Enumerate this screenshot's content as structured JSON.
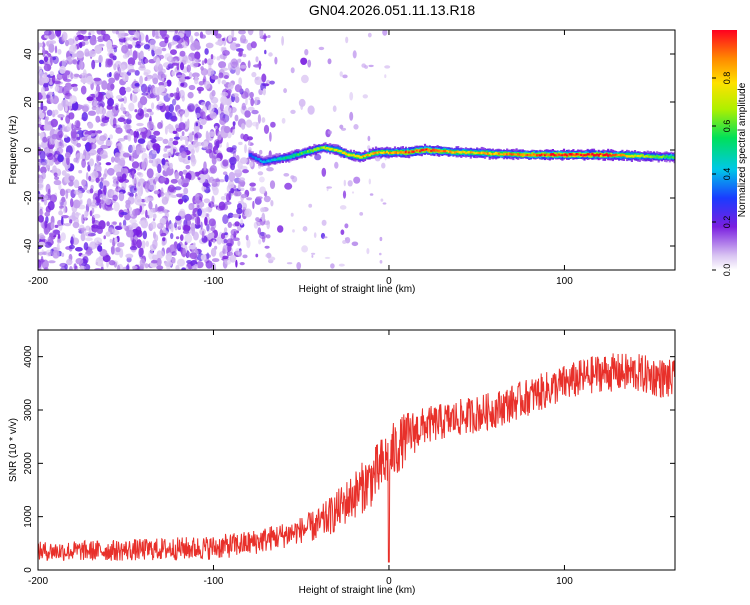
{
  "title": "GN04.2026.051.11.13.R18",
  "colors": {
    "snr_line": "#e8302a",
    "axis": "#000000"
  },
  "chart_data": [
    {
      "type": "heatmap",
      "name": "spectrogram",
      "xlabel": "Height of straight line (km)",
      "ylabel": "Frequency (Hz)",
      "xlim": [
        -200,
        163
      ],
      "ylim": [
        -50,
        50
      ],
      "xticks": [
        -200,
        -100,
        0,
        100
      ],
      "xtick_labels": [
        "-200",
        "-100",
        "0",
        "100"
      ],
      "yticks": [
        -40,
        -20,
        0,
        20,
        40
      ],
      "ytick_labels": [
        "-40",
        "-20",
        "0",
        "20",
        "40"
      ],
      "noise_region_x": [
        -200,
        -60
      ],
      "signal_start_x": -80,
      "ridge": [
        {
          "x": -80,
          "f": -2
        },
        {
          "x": -72,
          "f": -5
        },
        {
          "x": -66,
          "f": -4
        },
        {
          "x": -58,
          "f": -3
        },
        {
          "x": -48,
          "f": -1
        },
        {
          "x": -38,
          "f": 1
        },
        {
          "x": -30,
          "f": 0
        },
        {
          "x": -24,
          "f": -2
        },
        {
          "x": -16,
          "f": -3
        },
        {
          "x": -8,
          "f": -1
        },
        {
          "x": 0,
          "f": -1
        },
        {
          "x": 10,
          "f": -1
        },
        {
          "x": 20,
          "f": 0
        },
        {
          "x": 40,
          "f": -1
        },
        {
          "x": 80,
          "f": -2
        },
        {
          "x": 120,
          "f": -2
        },
        {
          "x": 163,
          "f": -3
        }
      ],
      "amplitude_profile": [
        {
          "x": -80,
          "a": 0.25
        },
        {
          "x": -60,
          "a": 0.45
        },
        {
          "x": -40,
          "a": 0.6
        },
        {
          "x": -20,
          "a": 0.75
        },
        {
          "x": 0,
          "a": 0.8
        },
        {
          "x": 20,
          "a": 0.92
        },
        {
          "x": 40,
          "a": 0.75
        },
        {
          "x": 60,
          "a": 0.8
        },
        {
          "x": 80,
          "a": 0.88
        },
        {
          "x": 100,
          "a": 0.97
        },
        {
          "x": 120,
          "a": 0.97
        },
        {
          "x": 140,
          "a": 0.7
        },
        {
          "x": 163,
          "a": 0.5
        }
      ],
      "colorbar": {
        "label": "Normalized spectral amplitude",
        "range": [
          0,
          1
        ],
        "ticks": [
          0.0,
          0.2,
          0.4,
          0.6,
          0.8
        ],
        "tick_labels": [
          "0.0",
          "0.2",
          "0.4",
          "0.6",
          "0.8"
        ]
      }
    },
    {
      "type": "line",
      "name": "snr",
      "xlabel": "Height of straight line (km)",
      "ylabel": "SNR (10 * v/v)",
      "xlim": [
        -200,
        163
      ],
      "ylim": [
        0,
        4500
      ],
      "xticks": [
        -200,
        -100,
        0,
        100
      ],
      "xtick_labels": [
        "-200",
        "-100",
        "0",
        "100"
      ],
      "yticks": [
        0,
        1000,
        2000,
        3000,
        4000
      ],
      "ytick_labels": [
        "0",
        "1000",
        "2000",
        "3000",
        "4000"
      ],
      "trend": [
        {
          "x": -200,
          "y": 350
        },
        {
          "x": -150,
          "y": 370
        },
        {
          "x": -100,
          "y": 420
        },
        {
          "x": -80,
          "y": 500
        },
        {
          "x": -60,
          "y": 650
        },
        {
          "x": -40,
          "y": 850
        },
        {
          "x": -30,
          "y": 1100
        },
        {
          "x": -20,
          "y": 1400
        },
        {
          "x": -10,
          "y": 1700
        },
        {
          "x": 0,
          "y": 2100
        },
        {
          "x": 10,
          "y": 2500
        },
        {
          "x": 20,
          "y": 2700
        },
        {
          "x": 40,
          "y": 2850
        },
        {
          "x": 60,
          "y": 3000
        },
        {
          "x": 80,
          "y": 3250
        },
        {
          "x": 100,
          "y": 3500
        },
        {
          "x": 120,
          "y": 3700
        },
        {
          "x": 140,
          "y": 3700
        },
        {
          "x": 163,
          "y": 3550
        }
      ],
      "noise_amplitude": [
        {
          "x": -200,
          "a": 180
        },
        {
          "x": -50,
          "a": 250
        },
        {
          "x": -20,
          "a": 450
        },
        {
          "x": 0,
          "a": 600
        },
        {
          "x": 20,
          "a": 350
        },
        {
          "x": 100,
          "a": 350
        },
        {
          "x": 163,
          "a": 380
        }
      ],
      "dip": {
        "x": 0,
        "y": 150
      }
    }
  ]
}
